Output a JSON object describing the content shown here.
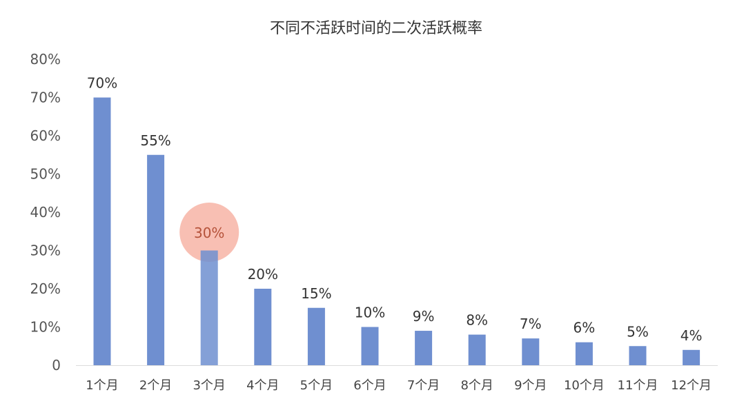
{
  "chart_data": {
    "type": "bar",
    "title": "不同不活跃时间的二次活跃概率",
    "xlabel": "",
    "ylabel": "",
    "categories": [
      "1个月",
      "2个月",
      "3个月",
      "4个月",
      "5个月",
      "6个月",
      "7个月",
      "8个月",
      "9个月",
      "10个月",
      "11个月",
      "12个月"
    ],
    "values": [
      70,
      55,
      30,
      20,
      15,
      10,
      9,
      8,
      7,
      6,
      5,
      4
    ],
    "data_labels": [
      "70%",
      "55%",
      "30%",
      "20%",
      "15%",
      "10%",
      "9%",
      "8%",
      "7%",
      "6%",
      "5%",
      "4%"
    ],
    "ylim": [
      0,
      80
    ],
    "yticks": [
      0,
      10,
      20,
      30,
      40,
      50,
      60,
      70,
      80
    ],
    "ytick_labels": [
      "0",
      "10%",
      "20%",
      "30%",
      "40%",
      "50%",
      "60%",
      "70%",
      "80%"
    ],
    "grid": false,
    "legend": "none",
    "highlight_index": 2,
    "colors": {
      "bar": "#6f8fd0",
      "highlight_circle": "#f5a99a",
      "axis": "#dcdcdc"
    }
  }
}
